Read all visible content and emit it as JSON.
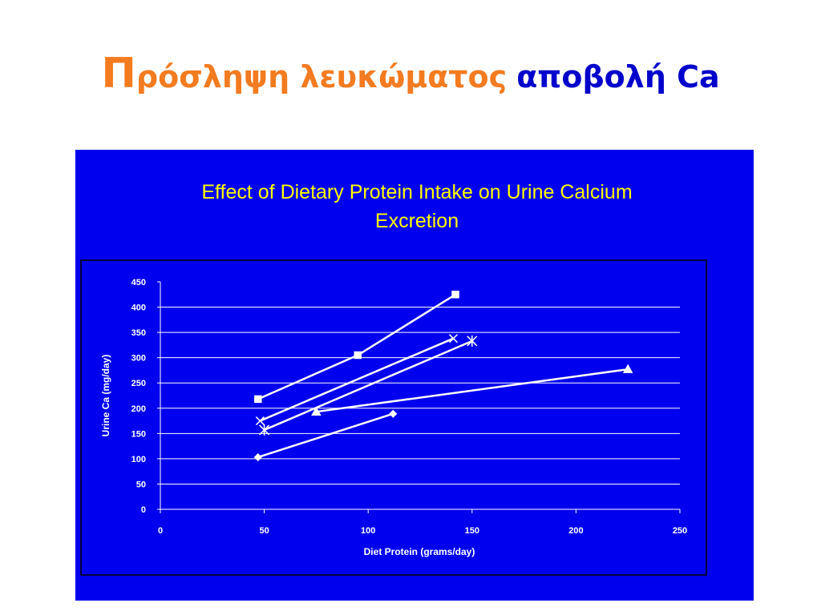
{
  "header": {
    "title_orange": "Πρόσληψη λευκώματος",
    "title_blue": "αποβολή Ca"
  },
  "chart_data": {
    "type": "scatter-line",
    "title": "Effect of Dietary Protein Intake on Urine Calcium Excretion",
    "x_label": "Diet Protein (grams/day)",
    "y_label": "Urine Ca (mg/day)",
    "xlim": [
      0,
      250
    ],
    "xticks": [
      0,
      50,
      100,
      150,
      200,
      250
    ],
    "ylim": [
      0,
      450
    ],
    "yticks": [
      0,
      50,
      100,
      150,
      200,
      250,
      300,
      350,
      400,
      450
    ],
    "grid": true,
    "series": [
      {
        "color": "#ffffff",
        "marker": "diamond",
        "x": [
          47,
          112
        ],
        "values": [
          103,
          189
        ]
      },
      {
        "color": "#ffffff",
        "marker": "square",
        "x": [
          47,
          95,
          142
        ],
        "values": [
          218,
          305,
          425
        ]
      },
      {
        "color": "#ffffff",
        "marker": "triangle",
        "x": [
          75,
          225
        ],
        "values": [
          193,
          277
        ]
      },
      {
        "color": "#ffffff",
        "marker": "x",
        "x": [
          48,
          141
        ],
        "values": [
          175,
          338
        ]
      },
      {
        "color": "#ffffff",
        "marker": "star",
        "x": [
          50,
          150
        ],
        "values": [
          157,
          333
        ]
      }
    ]
  }
}
